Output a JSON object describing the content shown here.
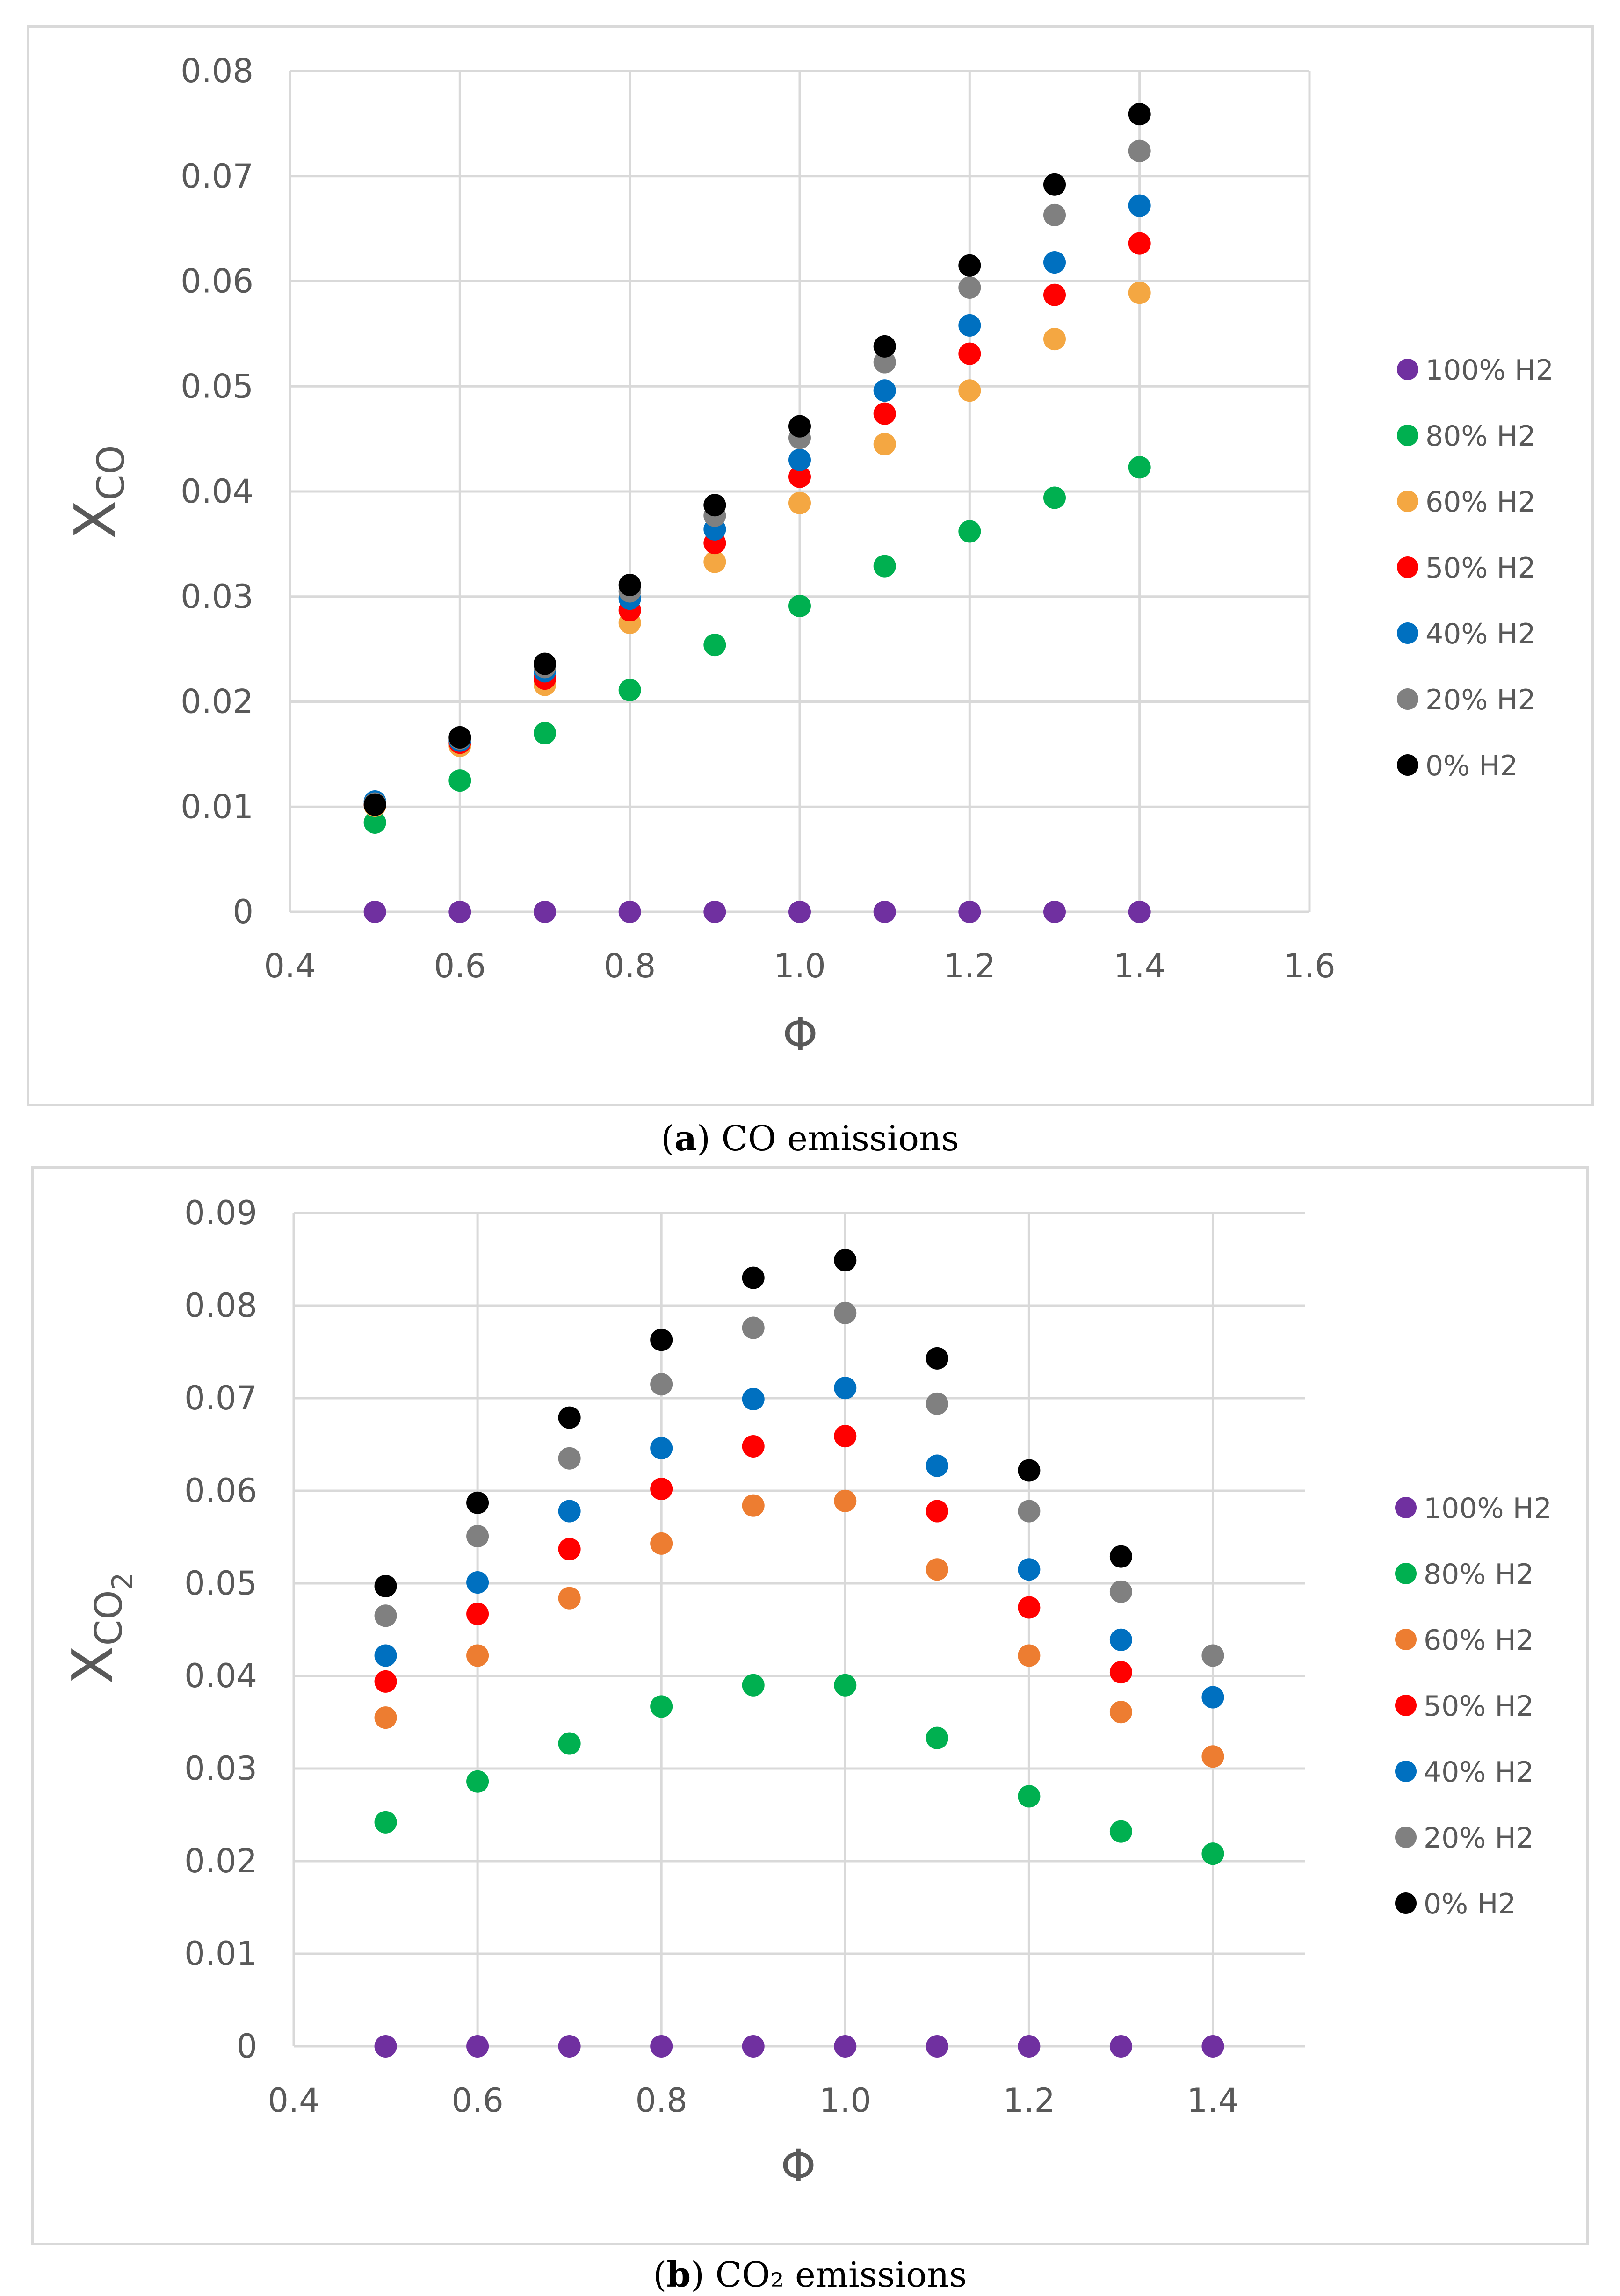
{
  "figure": {
    "captions": [
      {
        "open": "(",
        "letter": "a",
        "close": ")",
        "text": " CO emissions"
      },
      {
        "open": "(",
        "letter": "b",
        "close": ")",
        "text": " CO₂ emissions"
      }
    ]
  },
  "colors": {
    "100% H2": "#7030a0",
    "80% H2": "#00b050",
    "60% H2 (a)": "#f4a742",
    "60% H2 (b)": "#ed7d31",
    "50% H2": "#ff0000",
    "40% H2": "#0070c0",
    "20% H2": "#808080",
    "0% H2": "#000000",
    "grid": "#d9d9d9",
    "axis_text": "#595959"
  },
  "chart_data": [
    {
      "type": "scatter",
      "title": "",
      "xlabel": "Φ",
      "ylabel": "X",
      "ylabel_sub": "CO",
      "ylabel_subsub": "",
      "xlim": [
        0.4,
        1.6
      ],
      "ylim": [
        0,
        0.08
      ],
      "xticks": [
        0.4,
        0.6,
        0.8,
        1.0,
        1.2,
        1.4,
        1.6
      ],
      "xtick_labels": [
        "0.4",
        "0.6",
        "0.8",
        "1.0",
        "1.2",
        "1.4",
        "1.6"
      ],
      "yticks": [
        0,
        0.01,
        0.02,
        0.03,
        0.04,
        0.05,
        0.06,
        0.07,
        0.08
      ],
      "ytick_labels": [
        "0",
        "0.01",
        "0.02",
        "0.03",
        "0.04",
        "0.05",
        "0.06",
        "0.07",
        "0.08"
      ],
      "grid": true,
      "legend_position": "right",
      "x": [
        0.5,
        0.6,
        0.7,
        0.8,
        0.9,
        1.0,
        1.1,
        1.2,
        1.3,
        1.4
      ],
      "series": [
        {
          "name": "100% H2",
          "color": "#7030a0",
          "values": [
            0,
            0,
            0,
            0,
            0,
            0,
            0,
            0,
            0,
            0
          ]
        },
        {
          "name": "80% H2",
          "color": "#00b050",
          "values": [
            0.0085,
            0.0125,
            0.017,
            0.0211,
            0.0254,
            0.0291,
            0.0329,
            0.0362,
            0.0394,
            0.0423
          ]
        },
        {
          "name": "60% H2",
          "color": "#f4a742",
          "values": [
            0.0101,
            0.0158,
            0.0216,
            0.0275,
            0.0333,
            0.0389,
            0.0445,
            0.0496,
            0.0545,
            0.0589
          ]
        },
        {
          "name": "50% H2",
          "color": "#ff0000",
          "values": [
            0.0102,
            0.0161,
            0.0222,
            0.0287,
            0.0351,
            0.0414,
            0.0474,
            0.0531,
            0.0587,
            0.0636
          ]
        },
        {
          "name": "40% H2",
          "color": "#0070c0",
          "values": [
            0.0105,
            0.0163,
            0.0229,
            0.0298,
            0.0364,
            0.043,
            0.0496,
            0.0558,
            0.0618,
            0.0672
          ]
        },
        {
          "name": "20% H2",
          "color": "#808080",
          "values": [
            0.0103,
            0.0165,
            0.0233,
            0.0305,
            0.0377,
            0.0451,
            0.0523,
            0.0594,
            0.0663,
            0.0724
          ]
        },
        {
          "name": "0% H2",
          "color": "#000000",
          "values": [
            0.0102,
            0.0166,
            0.0236,
            0.0311,
            0.0387,
            0.0462,
            0.0538,
            0.0615,
            0.0692,
            0.0759
          ]
        }
      ]
    },
    {
      "type": "scatter",
      "title": "",
      "xlabel": "Φ",
      "ylabel": "X",
      "ylabel_sub": "CO",
      "ylabel_subsub": "2",
      "xlim": [
        0.4,
        1.5
      ],
      "ylim": [
        0,
        0.09
      ],
      "xticks": [
        0.4,
        0.6,
        0.8,
        1.0,
        1.2,
        1.4
      ],
      "xtick_labels": [
        "0.4",
        "0.6",
        "0.8",
        "1.0",
        "1.2",
        "1.4"
      ],
      "yticks": [
        0,
        0.01,
        0.02,
        0.03,
        0.04,
        0.05,
        0.06,
        0.07,
        0.08,
        0.09
      ],
      "ytick_labels": [
        "0",
        "0.01",
        "0.02",
        "0.03",
        "0.04",
        "0.05",
        "0.06",
        "0.07",
        "0.08",
        "0.09"
      ],
      "grid": true,
      "legend_position": "right",
      "x": [
        0.5,
        0.6,
        0.7,
        0.8,
        0.9,
        1.0,
        1.1,
        1.2,
        1.3,
        1.4
      ],
      "series": [
        {
          "name": "100% H2",
          "color": "#7030a0",
          "values": [
            0,
            0,
            0,
            0,
            0,
            0,
            0,
            0,
            0,
            0
          ]
        },
        {
          "name": "80% H2",
          "color": "#00b050",
          "values": [
            0.0242,
            0.0286,
            0.0327,
            0.0367,
            0.039,
            0.039,
            0.0333,
            0.027,
            0.0232,
            0.0208
          ]
        },
        {
          "name": "60% H2",
          "color": "#ed7d31",
          "values": [
            0.0355,
            0.0422,
            0.0484,
            0.0543,
            0.0584,
            0.0589,
            0.0515,
            0.0422,
            0.0361,
            0.0313
          ]
        },
        {
          "name": "50% H2",
          "color": "#ff0000",
          "values": [
            0.0394,
            0.0467,
            0.0537,
            0.0602,
            0.0648,
            0.0659,
            0.0578,
            0.0474,
            0.0404,
            null
          ]
        },
        {
          "name": "40% H2",
          "color": "#0070c0",
          "values": [
            0.0422,
            0.0501,
            0.0578,
            0.0646,
            0.0699,
            0.0711,
            0.0627,
            0.0515,
            0.0439,
            0.0377
          ]
        },
        {
          "name": "20% H2",
          "color": "#808080",
          "values": [
            0.0465,
            0.0551,
            0.0635,
            0.0715,
            0.0776,
            0.0792,
            0.0694,
            0.0578,
            0.0491,
            0.0422
          ]
        },
        {
          "name": "0% H2",
          "color": "#000000",
          "values": [
            0.0497,
            0.0587,
            0.0679,
            0.0763,
            0.083,
            0.0849,
            0.0743,
            0.0622,
            0.0529,
            null
          ]
        }
      ]
    }
  ]
}
